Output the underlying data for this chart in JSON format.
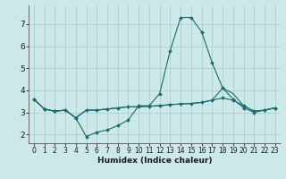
{
  "xlabel": "Humidex (Indice chaleur)",
  "bg_color": "#cce8e8",
  "grid_color": "#afd0d0",
  "line_color": "#1a6b6b",
  "x_ticks": [
    0,
    1,
    2,
    3,
    4,
    5,
    6,
    7,
    8,
    9,
    10,
    11,
    12,
    13,
    14,
    15,
    16,
    17,
    18,
    19,
    20,
    21,
    22,
    23
  ],
  "y_ticks": [
    2,
    3,
    4,
    5,
    6,
    7
  ],
  "xlim": [
    -0.5,
    23.5
  ],
  "ylim": [
    1.6,
    7.85
  ],
  "series": [
    [
      3.6,
      3.15,
      3.05,
      3.1,
      2.75,
      1.9,
      2.1,
      2.2,
      2.4,
      2.65,
      3.3,
      3.3,
      3.85,
      5.8,
      7.3,
      7.3,
      6.65,
      5.25,
      4.1,
      3.6,
      3.2,
      3.0,
      3.1,
      3.2
    ],
    [
      3.6,
      3.15,
      3.05,
      3.1,
      2.75,
      3.1,
      3.1,
      3.15,
      3.2,
      3.25,
      3.25,
      3.28,
      3.3,
      3.35,
      3.38,
      3.4,
      3.45,
      3.55,
      3.65,
      3.55,
      3.3,
      3.05,
      3.1,
      3.2
    ],
    [
      3.6,
      3.15,
      3.05,
      3.1,
      2.75,
      3.1,
      3.1,
      3.15,
      3.2,
      3.25,
      3.25,
      3.28,
      3.3,
      3.35,
      3.38,
      3.4,
      3.45,
      3.55,
      4.1,
      3.85,
      3.3,
      3.05,
      3.1,
      3.2
    ]
  ],
  "marker_series": [
    0,
    1
  ],
  "no_marker_series": [
    2
  ]
}
